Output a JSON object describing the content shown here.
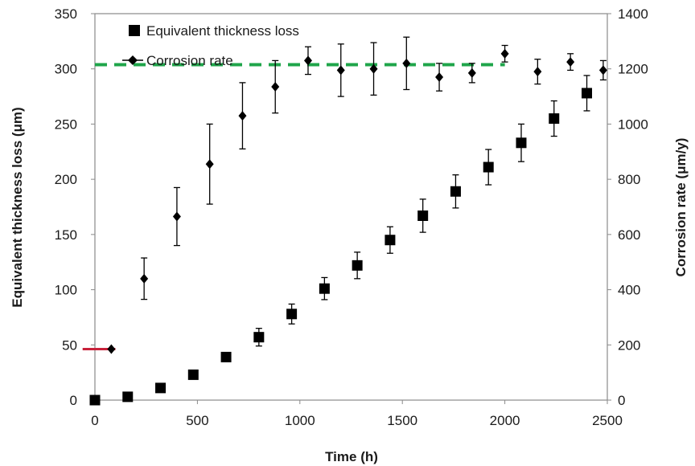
{
  "chart_data": {
    "type": "scatter",
    "xlabel": "Time (h)",
    "ylabel": "Equivalent thickness loss (μm)",
    "y2label": "Corrosion rate (μm/y)",
    "xlim": [
      0,
      2500
    ],
    "ylim": [
      0,
      350
    ],
    "y2lim": [
      0,
      1400
    ],
    "xticks": [
      0,
      500,
      1000,
      1500,
      2000,
      2500
    ],
    "yticks": [
      0,
      50,
      100,
      150,
      200,
      250,
      300,
      350
    ],
    "y2ticks": [
      0,
      200,
      400,
      600,
      800,
      1000,
      1200,
      1400
    ],
    "grid": false,
    "legend_position": "top-left",
    "series": [
      {
        "name": "Equivalent thickness loss",
        "axis": "left",
        "marker": "square",
        "color": "#000000",
        "x": [
          0,
          160,
          320,
          480,
          640,
          800,
          960,
          1120,
          1280,
          1440,
          1600,
          1760,
          1920,
          2080,
          2240,
          2400
        ],
        "y": [
          0,
          3,
          11,
          23,
          39,
          57,
          78,
          101,
          122,
          145,
          167,
          189,
          211,
          233,
          255,
          278
        ],
        "err": [
          0,
          0,
          0,
          0,
          4,
          8,
          9,
          10,
          12,
          12,
          15,
          15,
          16,
          17,
          16,
          16
        ]
      },
      {
        "name": "Corrosion rate",
        "axis": "right",
        "marker": "diamond",
        "color": "#000000",
        "x": [
          80,
          240,
          400,
          560,
          720,
          880,
          1040,
          1200,
          1360,
          1520,
          1680,
          1840,
          2000,
          2160,
          2320,
          2480
        ],
        "y": [
          185,
          440,
          665,
          855,
          1030,
          1135,
          1230,
          1195,
          1200,
          1220,
          1170,
          1185,
          1255,
          1190,
          1225,
          1195
        ],
        "err": [
          0,
          75,
          105,
          145,
          120,
          95,
          50,
          95,
          95,
          95,
          50,
          35,
          30,
          45,
          30,
          35
        ]
      }
    ],
    "reference_lines": [
      {
        "axis": "right",
        "value": 1215,
        "x_range": [
          0,
          2000
        ],
        "color": "#1fa54a",
        "style": "dashed"
      },
      {
        "axis": "right",
        "value": 185,
        "x_range": [
          -60,
          100
        ],
        "color": "#c8213a",
        "style": "solid"
      }
    ]
  }
}
